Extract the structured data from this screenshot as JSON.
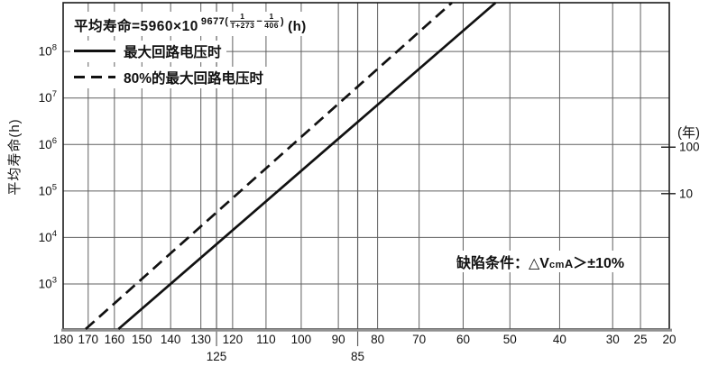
{
  "formula": {
    "prefix": "平均寿命=5960×10",
    "exp_open": "9677(",
    "frac1_num": "1",
    "frac1_den": "T+273",
    "exp_minus": "−",
    "frac2_num": "1",
    "frac2_den": "406",
    "exp_close": ")",
    "unit": "(h)"
  },
  "legend": {
    "solid_label": "最大回路电压时",
    "dashed_label": "80%的最大回路电压时"
  },
  "annotation": {
    "prefix": "缺陷条件：△V",
    "small": "cm",
    "mid": "A",
    "suffix": "＞±10%"
  },
  "chart_data": {
    "type": "line",
    "title": "平均寿命=5960×10^[9677(1/(T+273)−1/406)] (h)",
    "x_axis": {
      "scale": "reciprocal-absolute-temperature",
      "unit": "°C",
      "range": [
        180,
        20
      ],
      "ticks": [
        180,
        170,
        160,
        150,
        140,
        130,
        120,
        110,
        100,
        90,
        80,
        70,
        60,
        50,
        40,
        30,
        25,
        20
      ],
      "sub_ticks": [
        125,
        85
      ]
    },
    "y_axis": {
      "label": "平均寿命(h)",
      "scale": "log10",
      "tick_exponents": [
        8,
        7,
        6,
        5,
        4,
        3
      ],
      "range_log10": [
        2.03,
        9.05
      ]
    },
    "right_axis": {
      "label": "(年)",
      "ticks_years": [
        100,
        10
      ],
      "hours_per_year": 8760
    },
    "series": [
      {
        "name": "最大回路电压时",
        "style": "solid",
        "points": [
          {
            "temp_c": 158.5,
            "log10_hours": 2.03
          },
          {
            "temp_c": 53.0,
            "log10_hours": 9.05
          }
        ],
        "decade_readings": [
          {
            "hours": 1000,
            "temp_c": 140
          },
          {
            "hours": 10000,
            "temp_c": 122
          },
          {
            "hours": 100000,
            "temp_c": 106
          },
          {
            "hours": 1000000,
            "temp_c": 91
          },
          {
            "hours": 10000000,
            "temp_c": 78
          },
          {
            "hours": 100000000,
            "temp_c": 65
          }
        ]
      },
      {
        "name": "80%的最大回路电压时",
        "style": "dashed",
        "points": [
          {
            "temp_c": 171.0,
            "log10_hours": 2.03
          },
          {
            "temp_c": 62.5,
            "log10_hours": 9.05
          }
        ],
        "decade_readings": [
          {
            "hours": 1000,
            "temp_c": 152
          },
          {
            "hours": 10000,
            "temp_c": 134
          },
          {
            "hours": 100000,
            "temp_c": 118
          },
          {
            "hours": 1000000,
            "temp_c": 103
          },
          {
            "hours": 10000000,
            "temp_c": 89
          },
          {
            "hours": 100000000,
            "temp_c": 76
          }
        ]
      }
    ],
    "annotation_text": "缺陷条件：△VcmA＞±10%",
    "grid": true,
    "legend_position": "top-left-inside",
    "colors": {
      "line": "#111111",
      "grid": "#606060",
      "frame": "#1a1a1a",
      "axis": "#8f8f8f",
      "text": "#111111",
      "background": "#ffffff"
    }
  }
}
